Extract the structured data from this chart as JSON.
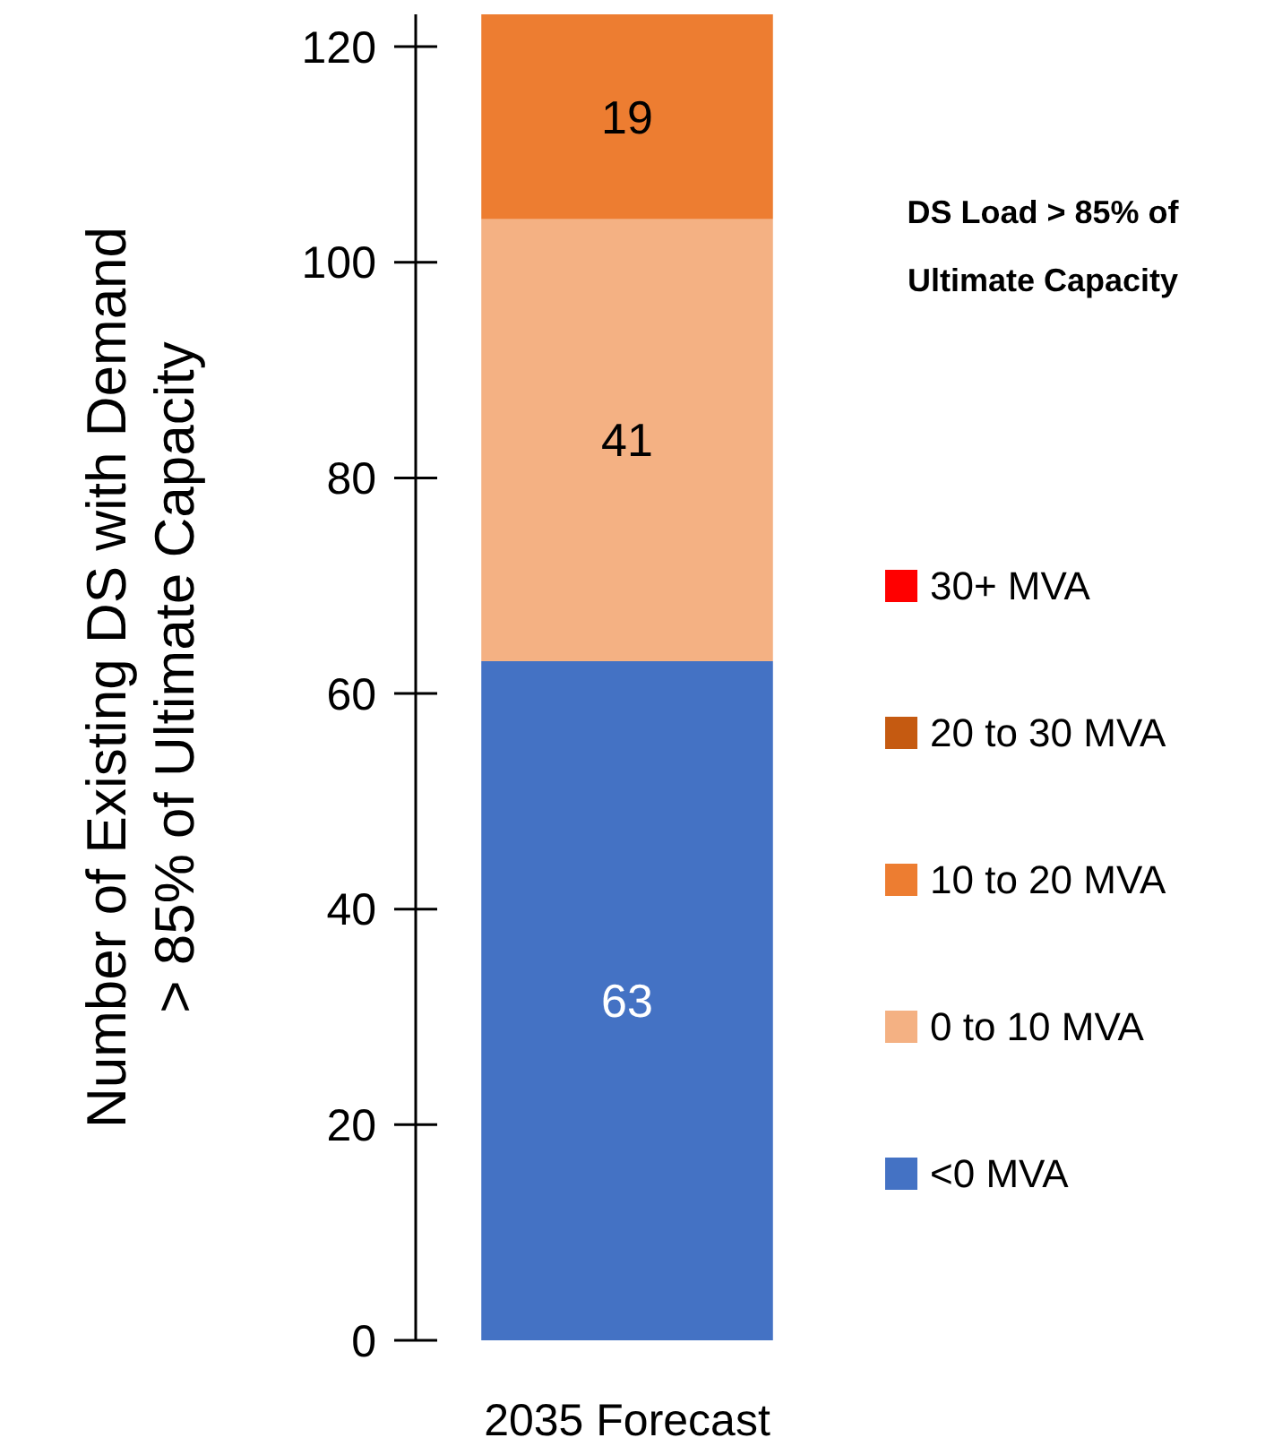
{
  "chart_data": {
    "type": "bar",
    "stacked": true,
    "ylabel": "Number of Existing DS with Demand\n> 85% of Ultimate Capacity",
    "legend_title": "DS Load > 85% of Ultimate Capacity",
    "legend": "right",
    "categories": [
      "2035 Forecast"
    ],
    "ylim": [
      0,
      123
    ],
    "yticks": [
      0,
      20,
      40,
      60,
      80,
      100,
      120
    ],
    "grid": false,
    "series": [
      {
        "name": "<0 MVA",
        "color": "#4472c4",
        "values": [
          63
        ],
        "value_labels": [
          "63"
        ]
      },
      {
        "name": "0 to 10 MVA",
        "color": "#f4b183",
        "values": [
          41
        ],
        "value_labels": [
          "41"
        ]
      },
      {
        "name": "10 to 20 MVA",
        "color": "#ed7d31",
        "values": [
          19
        ],
        "value_labels": [
          "19"
        ]
      },
      {
        "name": "20 to 30 MVA",
        "color": "#c55a11",
        "values": [
          0
        ],
        "value_labels": [
          null
        ]
      },
      {
        "name": "30+ MVA",
        "color": "#ff0000",
        "values": [
          0
        ],
        "value_labels": [
          null
        ]
      }
    ]
  }
}
